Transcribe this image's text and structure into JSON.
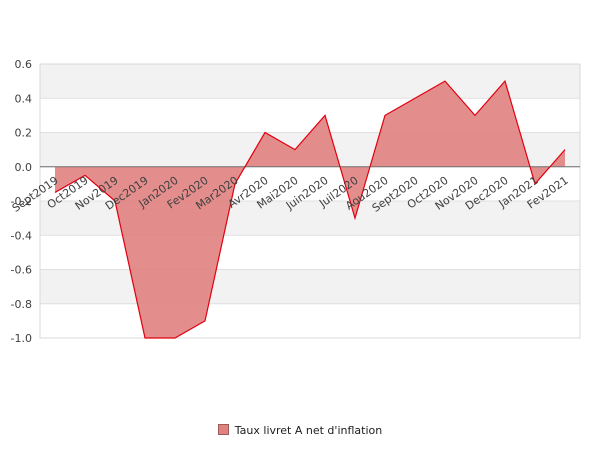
{
  "chart_data": {
    "type": "area",
    "title": "",
    "xlabel": "",
    "ylabel": "",
    "categories": [
      "Sept2019",
      "Oct2019",
      "Nov2019",
      "Dec2019",
      "Jan2020",
      "Fev2020",
      "Mar2020",
      "Avr2020",
      "Mai2020",
      "Juin2020",
      "Juil2020",
      "Aou2020",
      "Sept2020",
      "Oct2020",
      "Nov2020",
      "Dec2020",
      "Jan2021",
      "Fev2021"
    ],
    "series": [
      {
        "name": "Taux livret A net d'inflation",
        "values": [
          -0.15,
          -0.05,
          -0.2,
          -1.0,
          -1.0,
          -0.9,
          -0.1,
          0.2,
          0.1,
          0.3,
          -0.3,
          0.3,
          0.4,
          0.5,
          0.3,
          0.5,
          -0.1,
          0.1
        ],
        "fill_color": "#e0827f",
        "line_color": "#e0000f"
      }
    ],
    "ylim": [
      -1.0,
      0.6
    ],
    "yticks": [
      "0.6",
      "0.4",
      "0.2",
      "0.0",
      "-0.2",
      "-0.4",
      "-0.6",
      "-0.8",
      "-1.0"
    ],
    "ytick_values": [
      0.6,
      0.4,
      0.2,
      0.0,
      -0.2,
      -0.4,
      -0.6,
      -0.8,
      -1.0
    ],
    "grid": true,
    "legend_position": "bottom-center"
  },
  "legend": {
    "label": "Taux livret A net d'inflation"
  }
}
